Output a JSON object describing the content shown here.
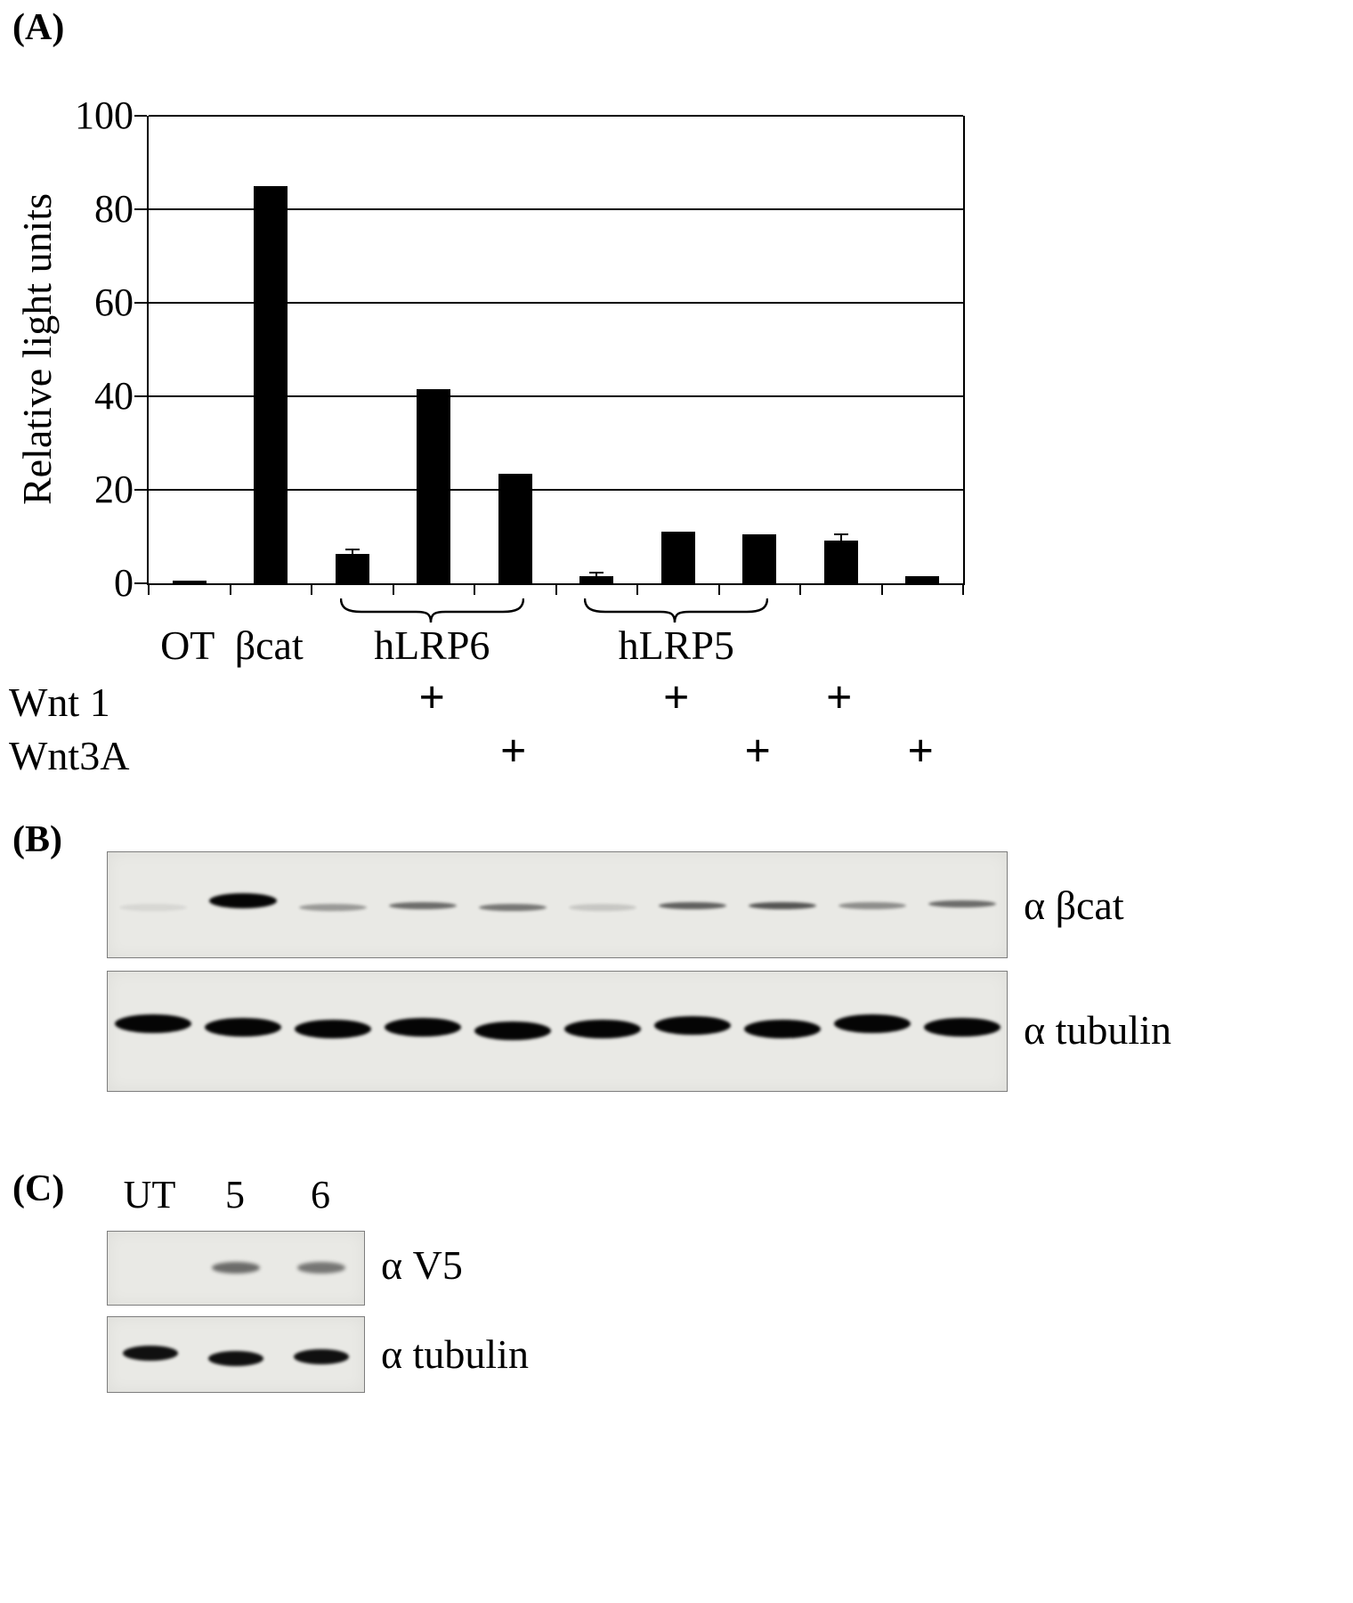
{
  "panel_a": {
    "label": "(A)",
    "groups": [
      {
        "label": "OT",
        "start": 0,
        "end": 0,
        "brace": false
      },
      {
        "label": "βcat",
        "start": 1,
        "end": 1,
        "brace": false
      },
      {
        "label": "hLRP6",
        "start": 2,
        "end": 4,
        "brace": true
      },
      {
        "label": "hLRP5",
        "start": 5,
        "end": 7,
        "brace": true
      }
    ],
    "wnt1_label": "Wnt 1",
    "wnt3a_label": "Wnt3A",
    "plus": "+"
  },
  "chart_data": {
    "type": "bar",
    "title": "",
    "ylabel": "Relative light units",
    "ylim": [
      0,
      100
    ],
    "yticks": [
      0,
      20,
      40,
      60,
      80,
      100
    ],
    "grid": true,
    "bar_color": "#000000",
    "categories": [
      "OT",
      "βcat",
      "hLRP6",
      "hLRP6 + Wnt1",
      "hLRP6 + Wnt3A",
      "hLRP5",
      "hLRP5 + Wnt1",
      "hLRP5 + Wnt3A",
      "Wnt1",
      "Wnt3A"
    ],
    "values": [
      0.5,
      85,
      6.3,
      41.5,
      23.5,
      1.5,
      11,
      10.5,
      9.2,
      1.5
    ],
    "error_bars": [
      0,
      0,
      0.9,
      0,
      0,
      0.7,
      0,
      0,
      1.2,
      0
    ],
    "wnt1_plus": [
      0,
      0,
      0,
      1,
      0,
      0,
      1,
      0,
      1,
      0
    ],
    "wnt3a_plus": [
      0,
      0,
      0,
      0,
      1,
      0,
      0,
      1,
      0,
      1
    ]
  },
  "panel_b": {
    "label": "(B)",
    "blot_bcat": {
      "label": "α βcat",
      "bands": [
        0.08,
        1,
        0.35,
        0.55,
        0.5,
        0.15,
        0.6,
        0.65,
        0.4,
        0.55
      ]
    },
    "blot_tubulin": {
      "label": "α tubulin",
      "bands": [
        1,
        1,
        1,
        1,
        1,
        1,
        1,
        1,
        1,
        1
      ]
    }
  },
  "panel_c": {
    "label": "(C)",
    "lanes": [
      "UT",
      "5",
      "6"
    ],
    "blot_v5": {
      "label": "α V5",
      "bands": [
        0,
        0.55,
        0.5
      ]
    },
    "blot_tubulin": {
      "label": "α tubulin",
      "bands": [
        0.95,
        0.95,
        0.95
      ]
    }
  }
}
